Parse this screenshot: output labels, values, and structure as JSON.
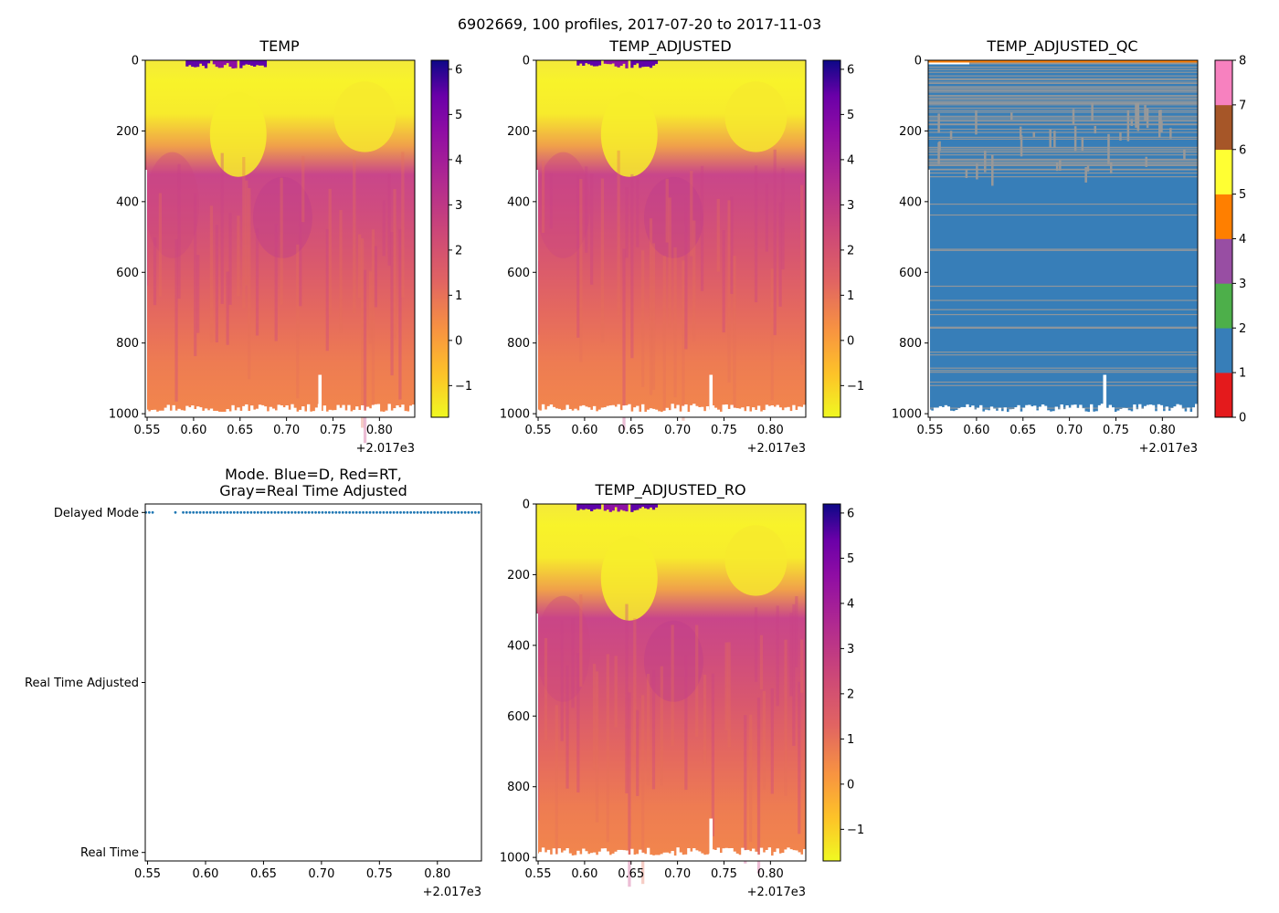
{
  "figure": {
    "suptitle": "6902669, 100 profiles, 2017-07-20 to 2017-11-03"
  },
  "chart_data": [
    {
      "type": "heatmap",
      "title": "TEMP",
      "xlim": [
        0.548,
        0.838
      ],
      "x_ticks": [
        0.55,
        0.6,
        0.65,
        0.7,
        0.75,
        0.8
      ],
      "x_tick_labels": [
        "0.55",
        "0.60",
        "0.65",
        "0.70",
        "0.75",
        "0.80"
      ],
      "x_offset_label": "+2.017e3",
      "ylim": [
        1010,
        0
      ],
      "y_ticks": [
        0,
        200,
        400,
        600,
        800,
        1000
      ],
      "y_tick_labels": [
        "0",
        "200",
        "400",
        "600",
        "800",
        "1000"
      ],
      "colormap": "plasma_r",
      "clim": [
        -1.7,
        6.2
      ],
      "colorbar_ticks": [
        -1,
        0,
        1,
        2,
        3,
        4,
        5,
        6
      ],
      "colorbar_tick_labels": [
        "−1",
        "0",
        "1",
        "2",
        "3",
        "4",
        "5",
        "6"
      ],
      "spike_x": 0.736,
      "spike_top": 890
    },
    {
      "type": "heatmap",
      "title": "TEMP_ADJUSTED",
      "xlim": [
        0.548,
        0.838
      ],
      "x_ticks": [
        0.55,
        0.6,
        0.65,
        0.7,
        0.75,
        0.8
      ],
      "x_tick_labels": [
        "0.55",
        "0.60",
        "0.65",
        "0.70",
        "0.75",
        "0.80"
      ],
      "x_offset_label": "+2.017e3",
      "ylim": [
        1010,
        0
      ],
      "y_ticks": [
        0,
        200,
        400,
        600,
        800,
        1000
      ],
      "y_tick_labels": [
        "0",
        "200",
        "400",
        "600",
        "800",
        "1000"
      ],
      "colormap": "plasma_r",
      "clim": [
        -1.7,
        6.2
      ],
      "colorbar_ticks": [
        -1,
        0,
        1,
        2,
        3,
        4,
        5,
        6
      ],
      "colorbar_tick_labels": [
        "−1",
        "0",
        "1",
        "2",
        "3",
        "4",
        "5",
        "6"
      ],
      "spike_x": 0.736,
      "spike_top": 890
    },
    {
      "type": "heatmap",
      "title": "TEMP_ADJUSTED_QC",
      "xlim": [
        0.548,
        0.838
      ],
      "x_ticks": [
        0.55,
        0.6,
        0.65,
        0.7,
        0.75,
        0.8
      ],
      "x_tick_labels": [
        "0.55",
        "0.60",
        "0.65",
        "0.70",
        "0.75",
        "0.80"
      ],
      "x_offset_label": "+2.017e3",
      "ylim": [
        1010,
        0
      ],
      "y_ticks": [
        0,
        200,
        400,
        600,
        800,
        1000
      ],
      "y_tick_labels": [
        "0",
        "200",
        "400",
        "600",
        "800",
        "1000"
      ],
      "dominant_flag": 1,
      "secondary_flag": 8,
      "qc_colors": [
        "#e41a1c",
        "#377eb8",
        "#4daf4a",
        "#984ea3",
        "#ff7f00",
        "#ffff33",
        "#a65628",
        "#f781bf",
        "#999999"
      ],
      "clim": [
        0,
        8
      ],
      "colorbar_ticks": [
        0,
        1,
        2,
        3,
        4,
        5,
        6,
        7,
        8
      ],
      "colorbar_tick_labels": [
        "0",
        "1",
        "2",
        "3",
        "4",
        "5",
        "6",
        "7",
        "8"
      ],
      "spike_x": 0.738,
      "spike_top": 890
    },
    {
      "type": "scatter",
      "title_line1": "Mode. Blue=D, Red=RT,",
      "title_line2": "Gray=Real Time Adjusted",
      "xlim": [
        0.548,
        0.838
      ],
      "x_ticks": [
        0.55,
        0.6,
        0.65,
        0.7,
        0.75,
        0.8
      ],
      "x_tick_labels": [
        "0.55",
        "0.60",
        "0.65",
        "0.70",
        "0.75",
        "0.80"
      ],
      "x_offset_label": "+2.017e3",
      "ylim": [
        -0.05,
        2.05
      ],
      "y_ticks": [
        0,
        1,
        2
      ],
      "y_tick_labels": [
        "Real Time",
        "Real Time Adjusted",
        "Delayed Mode"
      ],
      "point_color": "#1f77b4",
      "points_y": 2,
      "x_start": 0.5485,
      "x_step": 0.00293,
      "count": 100,
      "gap_from": 0.557,
      "gap_to": 0.58,
      "lone_point": 0.574
    },
    {
      "type": "heatmap",
      "title": "TEMP_ADJUSTED_RO",
      "xlim": [
        0.548,
        0.838
      ],
      "x_ticks": [
        0.55,
        0.6,
        0.65,
        0.7,
        0.75,
        0.8
      ],
      "x_tick_labels": [
        "0.55",
        "0.60",
        "0.65",
        "0.70",
        "0.75",
        "0.80"
      ],
      "x_offset_label": "+2.017e3",
      "ylim": [
        1010,
        0
      ],
      "y_ticks": [
        0,
        200,
        400,
        600,
        800,
        1000
      ],
      "y_tick_labels": [
        "0",
        "200",
        "400",
        "600",
        "800",
        "1000"
      ],
      "colormap": "plasma_r",
      "clim": [
        -1.7,
        6.2
      ],
      "colorbar_ticks": [
        -1,
        0,
        1,
        2,
        3,
        4,
        5,
        6
      ],
      "colorbar_tick_labels": [
        "−1",
        "0",
        "1",
        "2",
        "3",
        "4",
        "5",
        "6"
      ],
      "spike_x": 0.736,
      "spike_top": 890
    }
  ]
}
